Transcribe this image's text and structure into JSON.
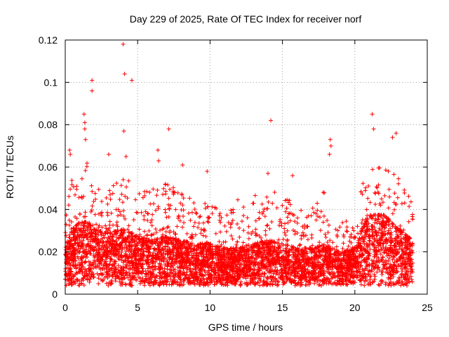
{
  "chart_data": {
    "type": "scatter",
    "title": "Day 229 of 2025, Rate Of TEC Index for receiver norf",
    "xlabel": "GPS time / hours",
    "ylabel": "ROTI / TECUs",
    "xlim": [
      0,
      25
    ],
    "ylim": [
      0,
      0.12
    ],
    "xticks": [
      0,
      5,
      10,
      15,
      20,
      25
    ],
    "yticks": [
      0,
      0.02,
      0.04,
      0.06,
      0.08,
      0.1,
      0.12
    ],
    "xtick_labels": [
      "0",
      "5",
      "10",
      "15",
      "20",
      "25"
    ],
    "ytick_labels": [
      "0",
      "0.02",
      "0.04",
      "0.06",
      "0.08",
      "0.1",
      "0.12"
    ],
    "grid": true,
    "marker": "+",
    "color": "#ff0000",
    "outliers": [
      {
        "x": 4.0,
        "y": 0.118
      },
      {
        "x": 4.1,
        "y": 0.104
      },
      {
        "x": 4.6,
        "y": 0.101
      },
      {
        "x": 1.85,
        "y": 0.101
      },
      {
        "x": 1.85,
        "y": 0.096
      },
      {
        "x": 1.3,
        "y": 0.085
      },
      {
        "x": 1.35,
        "y": 0.081
      },
      {
        "x": 1.35,
        "y": 0.078
      },
      {
        "x": 1.4,
        "y": 0.073
      },
      {
        "x": 4.05,
        "y": 0.077
      },
      {
        "x": 7.15,
        "y": 0.078
      },
      {
        "x": 14.2,
        "y": 0.082
      },
      {
        "x": 21.2,
        "y": 0.085
      },
      {
        "x": 21.3,
        "y": 0.078
      },
      {
        "x": 22.85,
        "y": 0.076
      },
      {
        "x": 22.6,
        "y": 0.074
      },
      {
        "x": 18.3,
        "y": 0.073
      },
      {
        "x": 18.35,
        "y": 0.07
      },
      {
        "x": 18.25,
        "y": 0.066
      },
      {
        "x": 6.4,
        "y": 0.068
      },
      {
        "x": 6.45,
        "y": 0.063
      },
      {
        "x": 0.3,
        "y": 0.068
      },
      {
        "x": 0.35,
        "y": 0.066
      },
      {
        "x": 3.0,
        "y": 0.066
      },
      {
        "x": 4.2,
        "y": 0.065
      },
      {
        "x": 8.1,
        "y": 0.061
      },
      {
        "x": 15.7,
        "y": 0.056
      },
      {
        "x": 14.0,
        "y": 0.057
      },
      {
        "x": 9.8,
        "y": 0.058
      }
    ],
    "density_profile": [
      {
        "x": 0,
        "mean": 0.014,
        "top": 0.045
      },
      {
        "x": 0.5,
        "mean": 0.018,
        "top": 0.055
      },
      {
        "x": 1,
        "mean": 0.02,
        "top": 0.06
      },
      {
        "x": 1.5,
        "mean": 0.02,
        "top": 0.062
      },
      {
        "x": 2,
        "mean": 0.018,
        "top": 0.05
      },
      {
        "x": 3,
        "mean": 0.017,
        "top": 0.05
      },
      {
        "x": 4,
        "mean": 0.018,
        "top": 0.058
      },
      {
        "x": 5,
        "mean": 0.016,
        "top": 0.05
      },
      {
        "x": 6,
        "mean": 0.015,
        "top": 0.05
      },
      {
        "x": 7,
        "mean": 0.016,
        "top": 0.053
      },
      {
        "x": 8,
        "mean": 0.015,
        "top": 0.048
      },
      {
        "x": 9,
        "mean": 0.014,
        "top": 0.045
      },
      {
        "x": 10,
        "mean": 0.014,
        "top": 0.045
      },
      {
        "x": 11,
        "mean": 0.013,
        "top": 0.043
      },
      {
        "x": 12,
        "mean": 0.013,
        "top": 0.045
      },
      {
        "x": 13,
        "mean": 0.014,
        "top": 0.047
      },
      {
        "x": 14,
        "mean": 0.015,
        "top": 0.05
      },
      {
        "x": 15,
        "mean": 0.014,
        "top": 0.047
      },
      {
        "x": 16,
        "mean": 0.013,
        "top": 0.043
      },
      {
        "x": 17,
        "mean": 0.013,
        "top": 0.04
      },
      {
        "x": 18,
        "mean": 0.014,
        "top": 0.05
      },
      {
        "x": 19,
        "mean": 0.012,
        "top": 0.035
      },
      {
        "x": 20,
        "mean": 0.013,
        "top": 0.035
      },
      {
        "x": 20.5,
        "mean": 0.018,
        "top": 0.052
      },
      {
        "x": 21,
        "mean": 0.022,
        "top": 0.06
      },
      {
        "x": 22,
        "mean": 0.022,
        "top": 0.062
      },
      {
        "x": 23,
        "mean": 0.018,
        "top": 0.055
      },
      {
        "x": 24,
        "mean": 0.015,
        "top": 0.045
      }
    ]
  }
}
